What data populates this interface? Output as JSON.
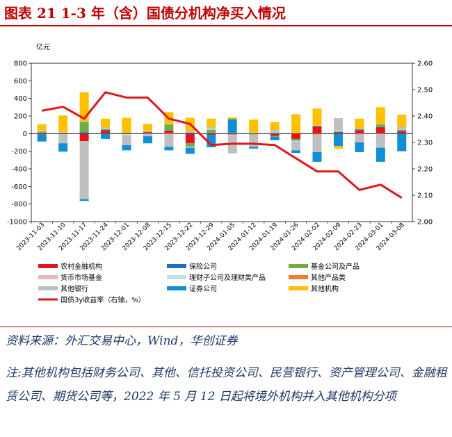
{
  "header": {
    "title": "图表 21   1-3 年（含）国债分机构净买入情况"
  },
  "chart_data": {
    "type": "bar",
    "stacked": true,
    "y_unit_label": "亿元",
    "ylim": [
      -1000,
      800
    ],
    "yticks": [
      800,
      600,
      400,
      200,
      0,
      -200,
      -400,
      -600,
      -800,
      -1000
    ],
    "y2lim": [
      2.0,
      2.6
    ],
    "y2ticks": [
      "2.60",
      "2.50",
      "2.40",
      "2.30",
      "2.20",
      "2.10",
      "2.00"
    ],
    "categories": [
      "2023-11-03",
      "2023-11-10",
      "2023-11-17",
      "2023-11-24",
      "2023-12-01",
      "2023-12-08",
      "2023-12-15",
      "2023-12-22",
      "2023-12-29",
      "2024-01-05",
      "2024-01-12",
      "2024-01-19",
      "2024-01-26",
      "2024-02-02",
      "2024-02-09",
      "2024-02-23",
      "2024-03-01",
      "2024-03-08"
    ],
    "series": [
      {
        "name": "农村金融机构",
        "color": "#e0161b",
        "values": [
          -10,
          -5,
          -85,
          40,
          -5,
          15,
          30,
          -110,
          -15,
          -10,
          -5,
          -25,
          -60,
          80,
          15,
          40,
          70,
          25
        ]
      },
      {
        "name": "保险公司",
        "color": "#1f6fc6",
        "values": [
          5,
          5,
          15,
          5,
          5,
          5,
          5,
          10,
          5,
          5,
          5,
          5,
          5,
          5,
          5,
          5,
          5,
          5
        ]
      },
      {
        "name": "基金公司及产品",
        "color": "#70ad47",
        "values": [
          20,
          5,
          120,
          5,
          5,
          5,
          70,
          -40,
          40,
          5,
          -5,
          -10,
          -20,
          5,
          5,
          10,
          30,
          15
        ]
      },
      {
        "name": "货币市场基金",
        "color": "#e6b8b7",
        "values": [
          0,
          0,
          0,
          0,
          0,
          0,
          0,
          0,
          0,
          0,
          0,
          0,
          0,
          0,
          0,
          0,
          0,
          0
        ]
      },
      {
        "name": "理财子公司及理财类产品",
        "color": "#c5e0e6",
        "values": [
          5,
          5,
          5,
          5,
          -10,
          5,
          5,
          -10,
          10,
          -10,
          5,
          5,
          -10,
          5,
          10,
          5,
          5,
          5
        ]
      },
      {
        "name": "其他产品类",
        "color": "#ed7d31",
        "values": [
          0,
          0,
          0,
          0,
          0,
          0,
          0,
          0,
          0,
          0,
          0,
          0,
          0,
          -10,
          0,
          0,
          0,
          0
        ]
      },
      {
        "name": "其他银行",
        "color": "#bfbfbf",
        "values": [
          5,
          -105,
          -660,
          15,
          -115,
          -30,
          -150,
          20,
          20,
          -205,
          -140,
          30,
          -100,
          -200,
          140,
          -100,
          -160,
          25
        ]
      },
      {
        "name": "证券公司",
        "color": "#0f8fd6",
        "values": [
          -80,
          -95,
          -20,
          -60,
          -60,
          -80,
          -40,
          -70,
          -140,
          155,
          -20,
          -40,
          -30,
          -110,
          -140,
          -110,
          -160,
          -200
        ]
      },
      {
        "name": "其他机构",
        "color": "#ffc000",
        "values": [
          70,
          190,
          330,
          100,
          170,
          80,
          135,
          150,
          95,
          20,
          150,
          90,
          215,
          190,
          -30,
          110,
          190,
          140
        ]
      }
    ],
    "line": {
      "name": "国债3y收益率（右轴，%）",
      "color": "#e0161b",
      "values": [
        2.42,
        2.435,
        2.39,
        2.49,
        2.47,
        2.47,
        2.39,
        2.37,
        2.29,
        2.295,
        2.295,
        2.29,
        2.24,
        2.19,
        2.19,
        2.12,
        2.14,
        2.09
      ]
    }
  },
  "footer": {
    "source": "资料来源：外汇交易中心，Wind，华创证券",
    "note": "注:其他机构包括财务公司、其他、信托投资公司、民营银行、资产管理公司、金融租赁公司、期货公司等，2022 年 5 月 12 日起将境外机构并入其他机构分项"
  }
}
